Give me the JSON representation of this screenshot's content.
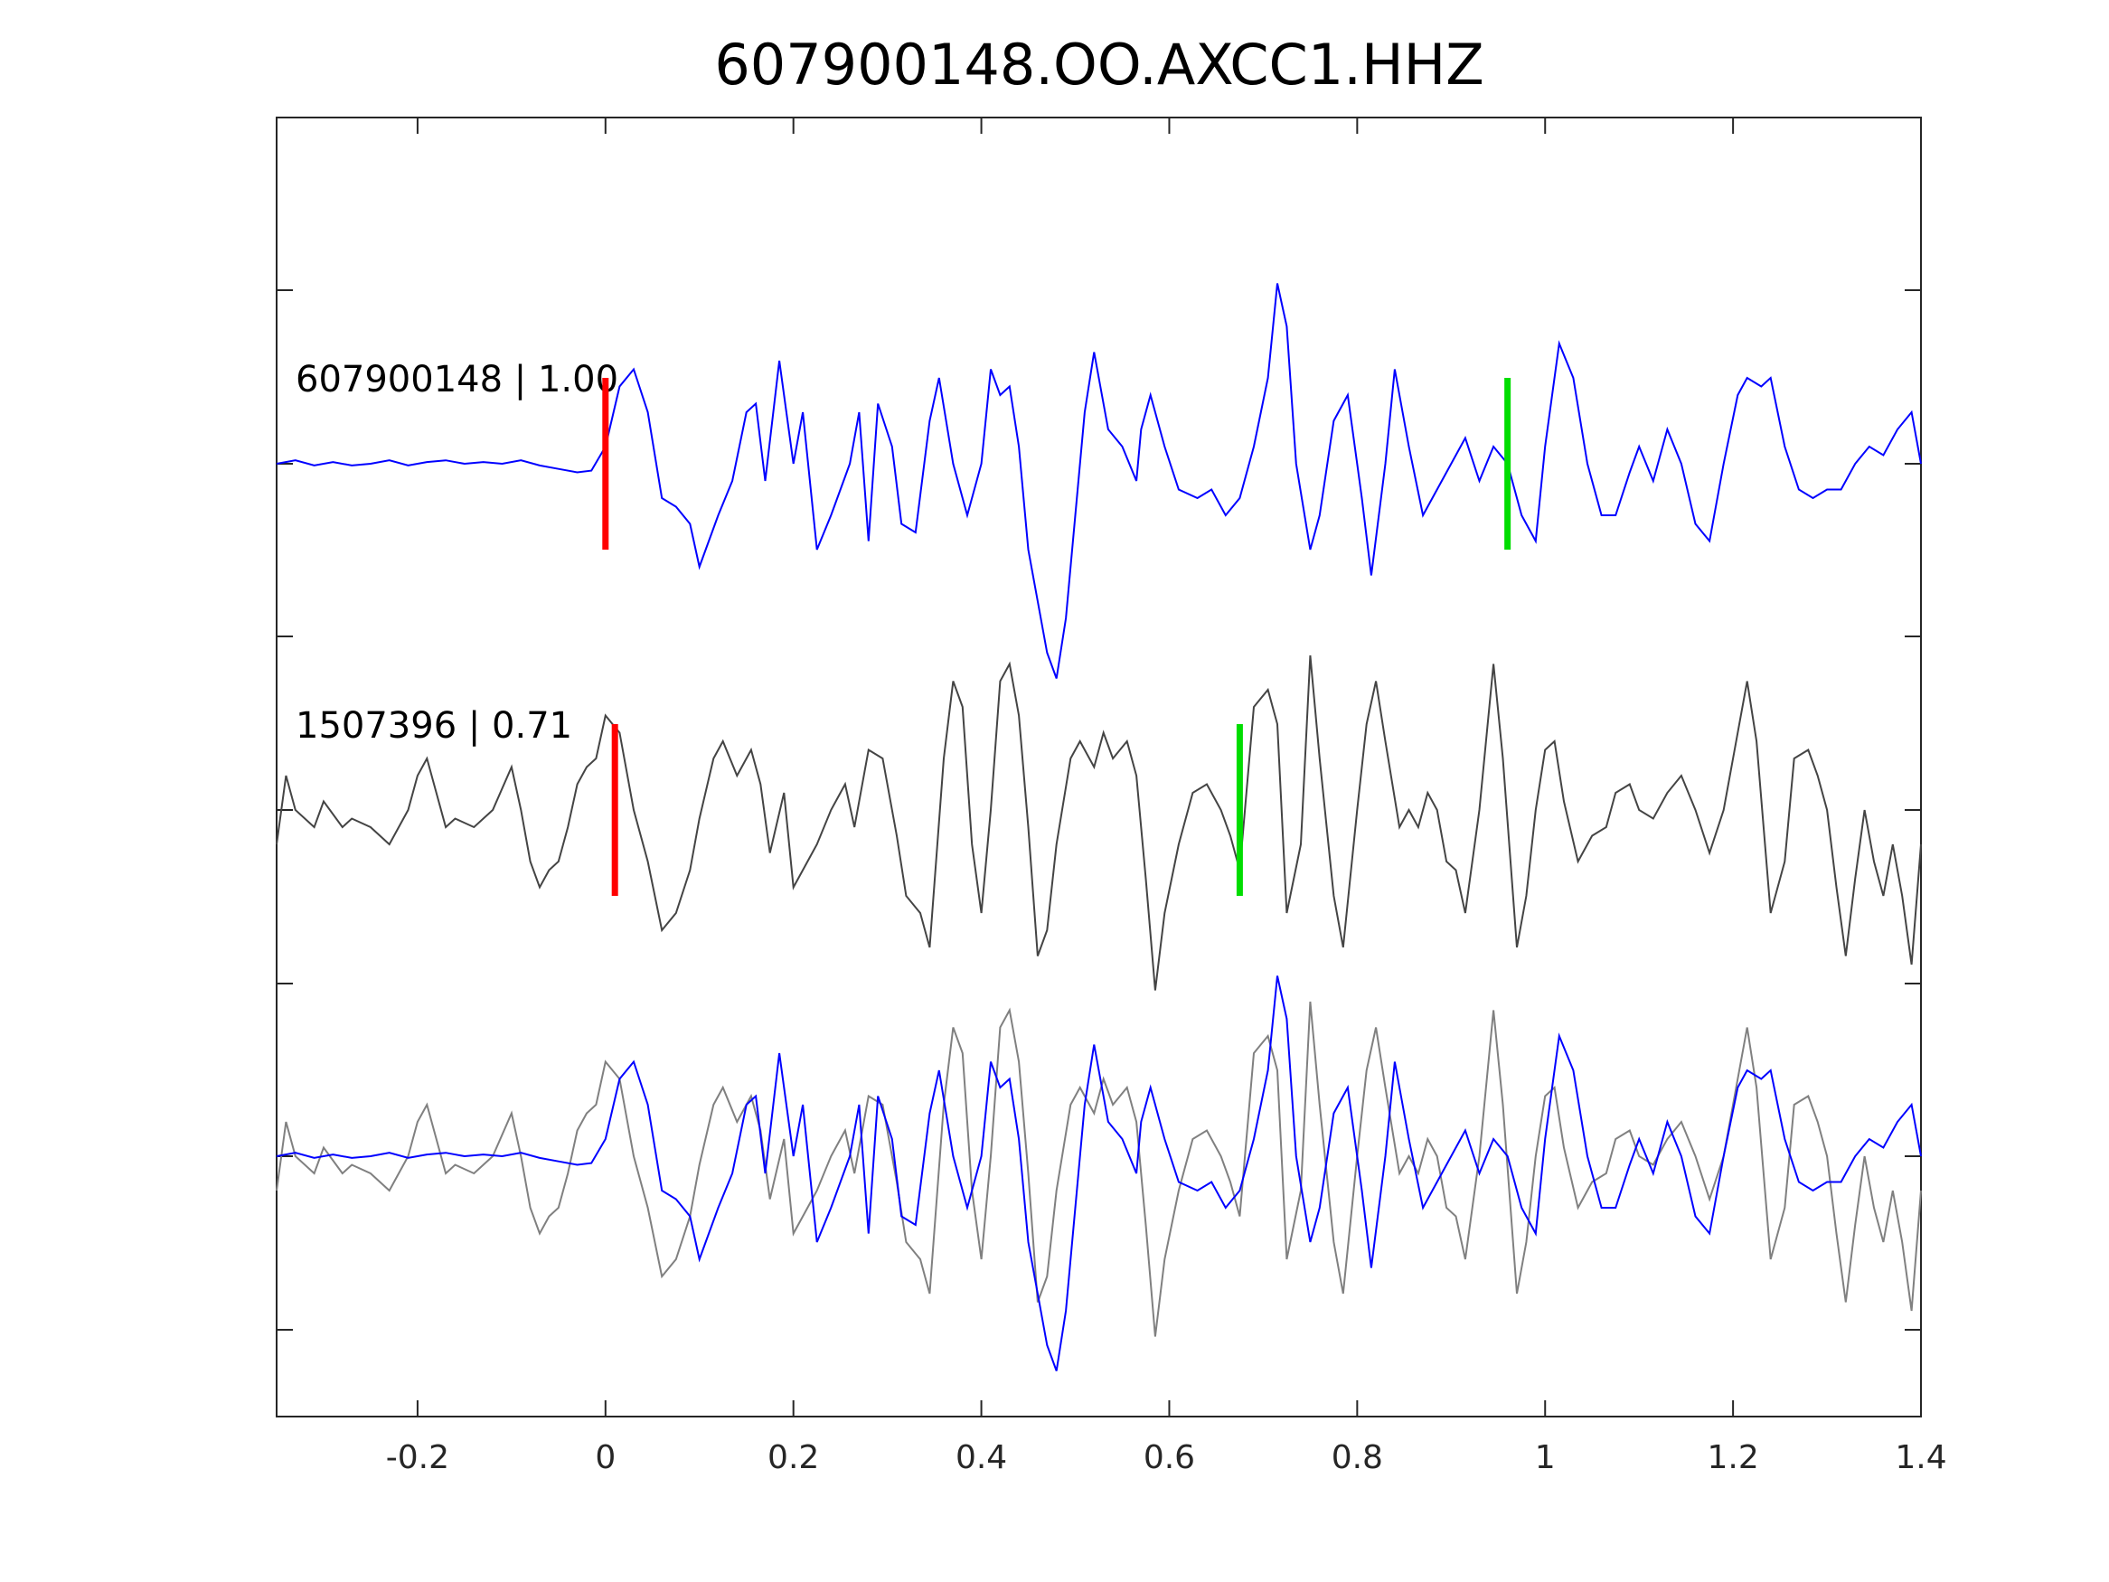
{
  "chart_data": {
    "type": "line",
    "title": "607900148.OO.AXCC1.HHZ",
    "xlabel": "",
    "ylabel": "",
    "xlim": [
      -0.35,
      1.4
    ],
    "x_ticks": [
      -0.2,
      0,
      0.2,
      0.4,
      0.6,
      0.8,
      1,
      1.2,
      1.4
    ],
    "x_tick_labels": [
      "-0.2",
      "0",
      "0.2",
      "0.4",
      "0.6",
      "0.8",
      "1",
      "1.2",
      "1.4"
    ],
    "y_ticks_labeled": false,
    "grid": false,
    "colors": {
      "master": "#0000ff",
      "template": "#444444",
      "overlay_template": "#808080",
      "pick_p": "#ff0000",
      "pick_s": "#00dd00",
      "axes": "#262626"
    },
    "traces": [
      {
        "label": "607900148 | 1.00",
        "event_id": "607900148",
        "cc": 1.0,
        "row": 1,
        "color": "#0000ff",
        "p_pick_time": 0.0,
        "s_pick_time": 0.96,
        "series": [
          [
            -0.35,
            0.0
          ],
          [
            -0.33,
            0.02
          ],
          [
            -0.31,
            -0.01
          ],
          [
            -0.29,
            0.01
          ],
          [
            -0.27,
            -0.01
          ],
          [
            -0.25,
            0.0
          ],
          [
            -0.23,
            0.02
          ],
          [
            -0.21,
            -0.01
          ],
          [
            -0.19,
            0.01
          ],
          [
            -0.17,
            0.02
          ],
          [
            -0.15,
            0.0
          ],
          [
            -0.13,
            0.01
          ],
          [
            -0.11,
            0.0
          ],
          [
            -0.09,
            0.02
          ],
          [
            -0.07,
            -0.01
          ],
          [
            -0.05,
            -0.03
          ],
          [
            -0.03,
            -0.05
          ],
          [
            -0.015,
            -0.04
          ],
          [
            0.0,
            0.1
          ],
          [
            0.015,
            0.45
          ],
          [
            0.03,
            0.55
          ],
          [
            0.045,
            0.3
          ],
          [
            0.06,
            -0.2
          ],
          [
            0.075,
            -0.25
          ],
          [
            0.09,
            -0.35
          ],
          [
            0.1,
            -0.6
          ],
          [
            0.12,
            -0.3
          ],
          [
            0.135,
            -0.1
          ],
          [
            0.15,
            0.3
          ],
          [
            0.16,
            0.35
          ],
          [
            0.17,
            -0.1
          ],
          [
            0.185,
            0.6
          ],
          [
            0.2,
            0.0
          ],
          [
            0.21,
            0.3
          ],
          [
            0.225,
            -0.5
          ],
          [
            0.24,
            -0.3
          ],
          [
            0.26,
            0.0
          ],
          [
            0.27,
            0.3
          ],
          [
            0.28,
            -0.45
          ],
          [
            0.29,
            0.35
          ],
          [
            0.305,
            0.1
          ],
          [
            0.315,
            -0.35
          ],
          [
            0.33,
            -0.4
          ],
          [
            0.345,
            0.25
          ],
          [
            0.355,
            0.5
          ],
          [
            0.37,
            0.0
          ],
          [
            0.385,
            -0.3
          ],
          [
            0.4,
            0.0
          ],
          [
            0.41,
            0.55
          ],
          [
            0.42,
            0.4
          ],
          [
            0.43,
            0.45
          ],
          [
            0.44,
            0.1
          ],
          [
            0.45,
            -0.5
          ],
          [
            0.46,
            -0.8
          ],
          [
            0.47,
            -1.1
          ],
          [
            0.48,
            -1.25
          ],
          [
            0.49,
            -0.9
          ],
          [
            0.5,
            -0.3
          ],
          [
            0.51,
            0.3
          ],
          [
            0.52,
            0.65
          ],
          [
            0.535,
            0.2
          ],
          [
            0.55,
            0.1
          ],
          [
            0.565,
            -0.1
          ],
          [
            0.57,
            0.2
          ],
          [
            0.58,
            0.4
          ],
          [
            0.595,
            0.1
          ],
          [
            0.61,
            -0.15
          ],
          [
            0.63,
            -0.2
          ],
          [
            0.645,
            -0.15
          ],
          [
            0.66,
            -0.3
          ],
          [
            0.675,
            -0.2
          ],
          [
            0.69,
            0.1
          ],
          [
            0.705,
            0.5
          ],
          [
            0.715,
            1.05
          ],
          [
            0.725,
            0.8
          ],
          [
            0.735,
            0.0
          ],
          [
            0.75,
            -0.5
          ],
          [
            0.76,
            -0.3
          ],
          [
            0.775,
            0.25
          ],
          [
            0.79,
            0.4
          ],
          [
            0.805,
            -0.2
          ],
          [
            0.815,
            -0.65
          ],
          [
            0.83,
            0.0
          ],
          [
            0.84,
            0.55
          ],
          [
            0.855,
            0.1
          ],
          [
            0.87,
            -0.3
          ],
          [
            0.885,
            -0.15
          ],
          [
            0.9,
            0.0
          ],
          [
            0.915,
            0.15
          ],
          [
            0.93,
            -0.1
          ],
          [
            0.945,
            0.1
          ],
          [
            0.96,
            0.0
          ],
          [
            0.975,
            -0.3
          ],
          [
            0.99,
            -0.45
          ],
          [
            1.0,
            0.1
          ],
          [
            1.015,
            0.7
          ],
          [
            1.03,
            0.5
          ],
          [
            1.045,
            0.0
          ],
          [
            1.06,
            -0.3
          ],
          [
            1.075,
            -0.3
          ],
          [
            1.09,
            -0.05
          ],
          [
            1.1,
            0.1
          ],
          [
            1.115,
            -0.1
          ],
          [
            1.13,
            0.2
          ],
          [
            1.145,
            0.0
          ],
          [
            1.16,
            -0.35
          ],
          [
            1.175,
            -0.45
          ],
          [
            1.19,
            0.0
          ],
          [
            1.205,
            0.4
          ],
          [
            1.215,
            0.5
          ],
          [
            1.23,
            0.45
          ],
          [
            1.24,
            0.5
          ],
          [
            1.255,
            0.1
          ],
          [
            1.27,
            -0.15
          ],
          [
            1.285,
            -0.2
          ],
          [
            1.3,
            -0.15
          ],
          [
            1.315,
            -0.15
          ],
          [
            1.33,
            0.0
          ],
          [
            1.345,
            0.1
          ],
          [
            1.36,
            0.05
          ],
          [
            1.375,
            0.2
          ],
          [
            1.39,
            0.3
          ],
          [
            1.4,
            0.0
          ]
        ]
      },
      {
        "label": "1507396 | 0.71",
        "event_id": "1507396",
        "cc": 0.71,
        "row": 2,
        "color": "#444444",
        "p_pick_time": 0.01,
        "s_pick_time": 0.675,
        "series": [
          [
            -0.35,
            -0.2
          ],
          [
            -0.34,
            0.2
          ],
          [
            -0.33,
            0.0
          ],
          [
            -0.31,
            -0.1
          ],
          [
            -0.3,
            0.05
          ],
          [
            -0.28,
            -0.1
          ],
          [
            -0.27,
            -0.05
          ],
          [
            -0.25,
            -0.1
          ],
          [
            -0.23,
            -0.2
          ],
          [
            -0.21,
            0.0
          ],
          [
            -0.2,
            0.2
          ],
          [
            -0.19,
            0.3
          ],
          [
            -0.18,
            0.1
          ],
          [
            -0.17,
            -0.1
          ],
          [
            -0.16,
            -0.05
          ],
          [
            -0.14,
            -0.1
          ],
          [
            -0.12,
            0.0
          ],
          [
            -0.1,
            0.25
          ],
          [
            -0.09,
            0.0
          ],
          [
            -0.08,
            -0.3
          ],
          [
            -0.07,
            -0.45
          ],
          [
            -0.06,
            -0.35
          ],
          [
            -0.05,
            -0.3
          ],
          [
            -0.04,
            -0.1
          ],
          [
            -0.03,
            0.15
          ],
          [
            -0.02,
            0.25
          ],
          [
            -0.01,
            0.3
          ],
          [
            0.0,
            0.55
          ],
          [
            0.015,
            0.45
          ],
          [
            0.03,
            0.0
          ],
          [
            0.045,
            -0.3
          ],
          [
            0.06,
            -0.7
          ],
          [
            0.075,
            -0.6
          ],
          [
            0.09,
            -0.35
          ],
          [
            0.1,
            -0.05
          ],
          [
            0.115,
            0.3
          ],
          [
            0.125,
            0.4
          ],
          [
            0.14,
            0.2
          ],
          [
            0.155,
            0.35
          ],
          [
            0.165,
            0.15
          ],
          [
            0.175,
            -0.25
          ],
          [
            0.19,
            0.1
          ],
          [
            0.2,
            -0.45
          ],
          [
            0.21,
            -0.35
          ],
          [
            0.225,
            -0.2
          ],
          [
            0.24,
            0.0
          ],
          [
            0.255,
            0.15
          ],
          [
            0.265,
            -0.1
          ],
          [
            0.28,
            0.35
          ],
          [
            0.295,
            0.3
          ],
          [
            0.31,
            -0.15
          ],
          [
            0.32,
            -0.5
          ],
          [
            0.335,
            -0.6
          ],
          [
            0.345,
            -0.8
          ],
          [
            0.36,
            0.3
          ],
          [
            0.37,
            0.75
          ],
          [
            0.38,
            0.6
          ],
          [
            0.39,
            -0.2
          ],
          [
            0.4,
            -0.6
          ],
          [
            0.41,
            0.0
          ],
          [
            0.42,
            0.75
          ],
          [
            0.43,
            0.85
          ],
          [
            0.44,
            0.55
          ],
          [
            0.45,
            -0.1
          ],
          [
            0.46,
            -0.85
          ],
          [
            0.47,
            -0.7
          ],
          [
            0.48,
            -0.2
          ],
          [
            0.495,
            0.3
          ],
          [
            0.505,
            0.4
          ],
          [
            0.52,
            0.25
          ],
          [
            0.53,
            0.45
          ],
          [
            0.54,
            0.3
          ],
          [
            0.555,
            0.4
          ],
          [
            0.565,
            0.2
          ],
          [
            0.575,
            -0.4
          ],
          [
            0.585,
            -1.05
          ],
          [
            0.595,
            -0.6
          ],
          [
            0.61,
            -0.2
          ],
          [
            0.625,
            0.1
          ],
          [
            0.64,
            0.15
          ],
          [
            0.655,
            0.0
          ],
          [
            0.665,
            -0.15
          ],
          [
            0.675,
            -0.35
          ],
          [
            0.69,
            0.6
          ],
          [
            0.705,
            0.7
          ],
          [
            0.715,
            0.5
          ],
          [
            0.725,
            -0.6
          ],
          [
            0.74,
            -0.2
          ],
          [
            0.75,
            0.9
          ],
          [
            0.76,
            0.3
          ],
          [
            0.775,
            -0.5
          ],
          [
            0.785,
            -0.8
          ],
          [
            0.8,
            0.0
          ],
          [
            0.81,
            0.5
          ],
          [
            0.82,
            0.75
          ],
          [
            0.83,
            0.4
          ],
          [
            0.845,
            -0.1
          ],
          [
            0.855,
            0.0
          ],
          [
            0.865,
            -0.1
          ],
          [
            0.875,
            0.1
          ],
          [
            0.885,
            0.0
          ],
          [
            0.895,
            -0.3
          ],
          [
            0.905,
            -0.35
          ],
          [
            0.915,
            -0.6
          ],
          [
            0.93,
            0.0
          ],
          [
            0.945,
            0.85
          ],
          [
            0.955,
            0.3
          ],
          [
            0.97,
            -0.8
          ],
          [
            0.98,
            -0.5
          ],
          [
            0.99,
            0.0
          ],
          [
            1.0,
            0.35
          ],
          [
            1.01,
            0.4
          ],
          [
            1.02,
            0.05
          ],
          [
            1.035,
            -0.3
          ],
          [
            1.05,
            -0.15
          ],
          [
            1.065,
            -0.1
          ],
          [
            1.075,
            0.1
          ],
          [
            1.09,
            0.15
          ],
          [
            1.1,
            0.0
          ],
          [
            1.115,
            -0.05
          ],
          [
            1.13,
            0.1
          ],
          [
            1.145,
            0.2
          ],
          [
            1.16,
            0.0
          ],
          [
            1.175,
            -0.25
          ],
          [
            1.19,
            0.0
          ],
          [
            1.2,
            0.3
          ],
          [
            1.215,
            0.75
          ],
          [
            1.225,
            0.4
          ],
          [
            1.24,
            -0.6
          ],
          [
            1.255,
            -0.3
          ],
          [
            1.265,
            0.3
          ],
          [
            1.28,
            0.35
          ],
          [
            1.29,
            0.2
          ],
          [
            1.3,
            0.0
          ],
          [
            1.31,
            -0.45
          ],
          [
            1.32,
            -0.85
          ],
          [
            1.33,
            -0.4
          ],
          [
            1.34,
            0.0
          ],
          [
            1.35,
            -0.3
          ],
          [
            1.36,
            -0.5
          ],
          [
            1.37,
            -0.2
          ],
          [
            1.38,
            -0.5
          ],
          [
            1.39,
            -0.9
          ],
          [
            1.4,
            -0.2
          ]
        ]
      }
    ]
  }
}
